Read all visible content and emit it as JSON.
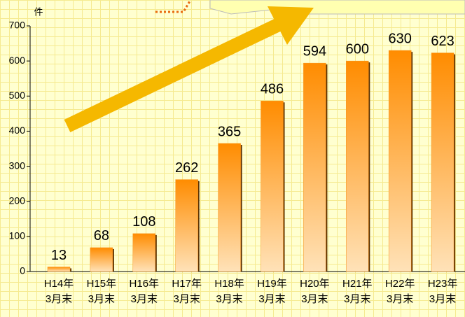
{
  "chart_data": {
    "type": "bar",
    "y_label": "件",
    "categories": [
      "H14年\n3月末",
      "H15年\n3月末",
      "H16年\n3月末",
      "H17年\n3月末",
      "H18年\n3月末",
      "H19年\n3月末",
      "H20年\n3月末",
      "H21年\n3月末",
      "H22年\n3月末",
      "H23年\n3月末"
    ],
    "values": [
      13,
      68,
      108,
      262,
      365,
      486,
      594,
      600,
      630,
      623
    ],
    "color": "#f7941d",
    "ylim": [
      0,
      700
    ],
    "yticks": [
      0,
      100,
      200,
      300,
      400,
      500,
      600,
      700
    ]
  }
}
